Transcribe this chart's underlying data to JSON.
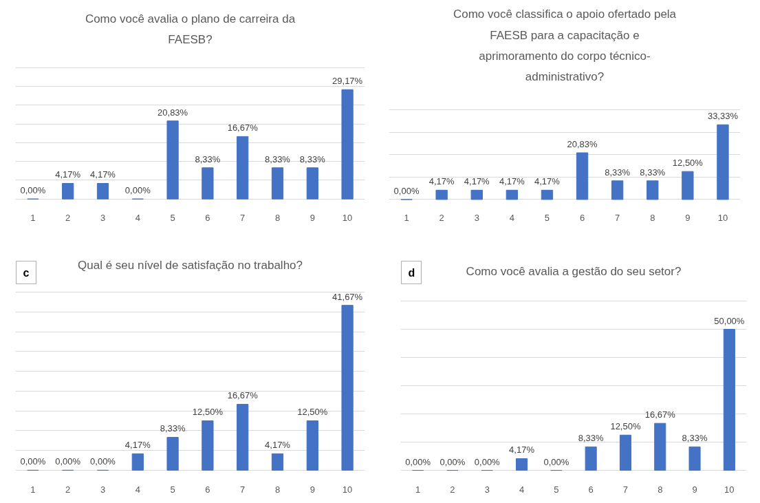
{
  "chart_data": [
    {
      "type": "bar",
      "title": "Como você avalia o plano de carreira da FAESB?",
      "categories": [
        "1",
        "2",
        "3",
        "4",
        "5",
        "6",
        "7",
        "8",
        "9",
        "10"
      ],
      "values": [
        0,
        4.17,
        4.17,
        0,
        20.83,
        8.33,
        16.67,
        8.33,
        8.33,
        29.17
      ],
      "value_labels": [
        "0,00%",
        "4,17%",
        "4,17%",
        "0,00%",
        "20,83%",
        "8,33%",
        "16,67%",
        "8,33%",
        "8,33%",
        "29,17%"
      ],
      "color": "#4472c4",
      "yticks": [
        {
          "value": 0,
          "label": null
        },
        {
          "value": 5,
          "label": null
        },
        {
          "value": 10,
          "label": null
        },
        {
          "value": 15,
          "label": null
        },
        {
          "value": 20,
          "label": null
        },
        {
          "value": 25,
          "label": null
        },
        {
          "value": 30,
          "label": null
        },
        {
          "value": 35,
          "label": null
        }
      ],
      "grid": "y",
      "tick_labels": "x"
    },
    {
      "type": "bar",
      "title": "Como você classifica o apoio ofertado pela FAESB para a capacitação e aprimoramento do corpo técnico-administrativo?",
      "categories": [
        "1",
        "2",
        "3",
        "4",
        "5",
        "6",
        "7",
        "8",
        "9",
        "10"
      ],
      "values": [
        0,
        4.17,
        4.17,
        4.17,
        4.17,
        20.83,
        8.33,
        8.33,
        12.5,
        33.33
      ],
      "value_labels": [
        "0,00%",
        "4,17%",
        "4,17%",
        "4,17%",
        "4,17%",
        "20,83%",
        "8,33%",
        "8,33%",
        "12,50%",
        "33,33%"
      ],
      "color": "#4472c4",
      "yticks": [
        {
          "value": 0,
          "label": null
        },
        {
          "value": 10,
          "label": null
        },
        {
          "value": 20,
          "label": null
        },
        {
          "value": 30,
          "label": null
        },
        {
          "value": 40,
          "label": null
        }
      ],
      "grid": "y",
      "tick_labels": "x"
    },
    {
      "type": "bar",
      "title": "Qual é seu nível de satisfação no trabalho?",
      "annotations": [
        "c"
      ],
      "categories": [
        "1",
        "2",
        "3",
        "4",
        "5",
        "6",
        "7",
        "8",
        "9",
        "10"
      ],
      "values": [
        0,
        0,
        0,
        4.17,
        8.33,
        12.5,
        16.67,
        4.17,
        12.5,
        41.67
      ],
      "value_labels": [
        "0,00%",
        "0,00%",
        "0,00%",
        "4,17%",
        "8,33%",
        "12,50%",
        "16,67%",
        "4,17%",
        "12,50%",
        "41,67%"
      ],
      "color": "#4472c4",
      "yticks": [
        {
          "value": 0,
          "label": null
        },
        {
          "value": 5,
          "label": null
        },
        {
          "value": 10,
          "label": null
        },
        {
          "value": 15,
          "label": null
        },
        {
          "value": 20,
          "label": null
        },
        {
          "value": 25,
          "label": null
        },
        {
          "value": 30,
          "label": null
        },
        {
          "value": 35,
          "label": null
        },
        {
          "value": 40,
          "label": null
        },
        {
          "value": 45,
          "label": null
        }
      ],
      "grid": "y",
      "tick_labels": "x"
    },
    {
      "type": "bar",
      "title": "Como você avalia a gestão do seu setor?",
      "annotations": [
        "d"
      ],
      "categories": [
        "1",
        "2",
        "3",
        "4",
        "5",
        "6",
        "7",
        "8",
        "9",
        "10"
      ],
      "values": [
        0,
        0,
        0,
        4.17,
        0,
        8.33,
        12.5,
        16.67,
        8.33,
        50
      ],
      "value_labels": [
        "0,00%",
        "0,00%",
        "0,00%",
        "4,17%",
        "0,00%",
        "8,33%",
        "12,50%",
        "16,67%",
        "8,33%",
        "50,00%"
      ],
      "color": "#4472c4",
      "yticks": [
        {
          "value": 0,
          "label": null
        },
        {
          "value": 10,
          "label": null
        },
        {
          "value": 20,
          "label": null
        },
        {
          "value": 30,
          "label": null
        },
        {
          "value": 40,
          "label": null
        },
        {
          "value": 50,
          "label": null
        },
        {
          "value": 60,
          "label": null
        }
      ],
      "grid": "y",
      "tick_labels": "x"
    }
  ]
}
